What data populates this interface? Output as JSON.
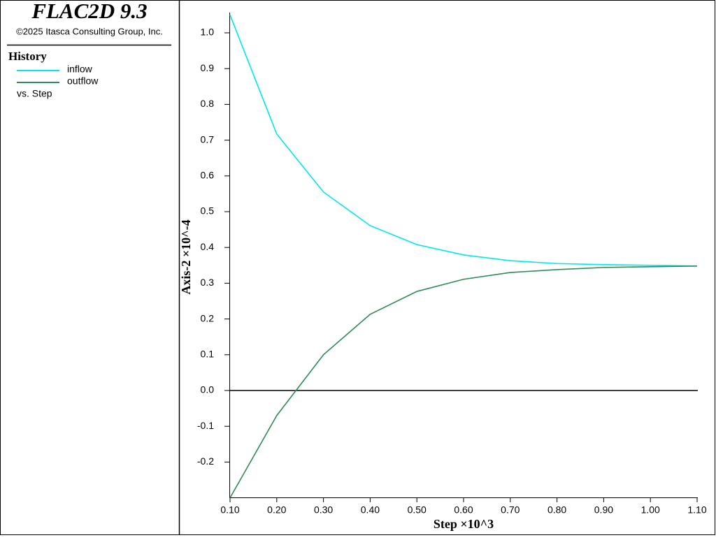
{
  "chart_data": {
    "type": "line",
    "title": "FLAC2D 9.3",
    "subtitle": "©2025 Itasca Consulting Group, Inc.",
    "legend_title": "History",
    "legend_note": "vs. Step",
    "x_label": "Step ×10^3",
    "y_label": "Axis-2 ×10^-4",
    "x": [
      0.1,
      0.2,
      0.3,
      0.4,
      0.5,
      0.6,
      0.7,
      0.8,
      0.9,
      1.0,
      1.1
    ],
    "series": [
      {
        "name": "inflow",
        "color": "#00e5ee",
        "values": [
          1.05,
          0.717,
          0.555,
          0.461,
          0.408,
          0.379,
          0.363,
          0.355,
          0.352,
          0.35,
          0.348
        ]
      },
      {
        "name": "outflow",
        "color": "#2e8b57",
        "values": [
          -0.3,
          -0.07,
          0.1,
          0.213,
          0.277,
          0.311,
          0.33,
          0.338,
          0.344,
          0.346,
          0.348
        ]
      }
    ],
    "xlim": [
      0.1,
      1.1
    ],
    "ylim": [
      -0.3,
      1.05
    ],
    "xticks": [
      {
        "value": 0.1,
        "label": "0.10"
      },
      {
        "value": 0.2,
        "label": "0.20"
      },
      {
        "value": 0.3,
        "label": "0.30"
      },
      {
        "value": 0.4,
        "label": "0.40"
      },
      {
        "value": 0.5,
        "label": "0.50"
      },
      {
        "value": 0.6,
        "label": "0.60"
      },
      {
        "value": 0.7,
        "label": "0.70"
      },
      {
        "value": 0.8,
        "label": "0.80"
      },
      {
        "value": 0.9,
        "label": "0.90"
      },
      {
        "value": 1.0,
        "label": "1.00"
      },
      {
        "value": 1.1,
        "label": "1.10"
      }
    ],
    "yticks": [
      -0.2,
      -0.1,
      {
        "value": 0,
        "label": "0.0"
      },
      0.1,
      0.2,
      0.3,
      0.4,
      0.5,
      0.6,
      0.7,
      0.8,
      0.9,
      {
        "value": 1,
        "label": "1.0"
      }
    ],
    "zero_line": true
  }
}
